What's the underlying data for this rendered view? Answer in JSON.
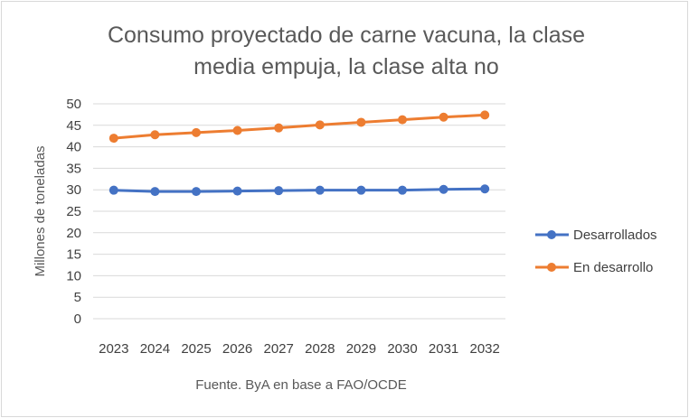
{
  "chart_data": {
    "type": "line",
    "title_lines": [
      "Consumo proyectado de carne vacuna, la clase",
      "media empuja, la clase alta no"
    ],
    "ylabel": "Millones de toneladas",
    "xlabel": "",
    "source": "Fuente. ByA en base a FAO/OCDE",
    "ylim": [
      0,
      50
    ],
    "yticks": [
      0,
      5,
      10,
      15,
      20,
      25,
      30,
      35,
      40,
      45,
      50
    ],
    "categories": [
      "2023",
      "2024",
      "2025",
      "2026",
      "2027",
      "2028",
      "2029",
      "2030",
      "2031",
      "2032"
    ],
    "grid": true,
    "legend_position": "right",
    "series": [
      {
        "name": "Desarrollados",
        "color": "#4472c4",
        "values": [
          29.9,
          29.6,
          29.6,
          29.7,
          29.8,
          29.9,
          29.9,
          29.9,
          30.1,
          30.2
        ]
      },
      {
        "name": "En desarrollo",
        "color": "#ed7d31",
        "values": [
          42.0,
          42.8,
          43.3,
          43.8,
          44.4,
          45.1,
          45.7,
          46.3,
          46.9,
          47.4
        ]
      }
    ]
  }
}
